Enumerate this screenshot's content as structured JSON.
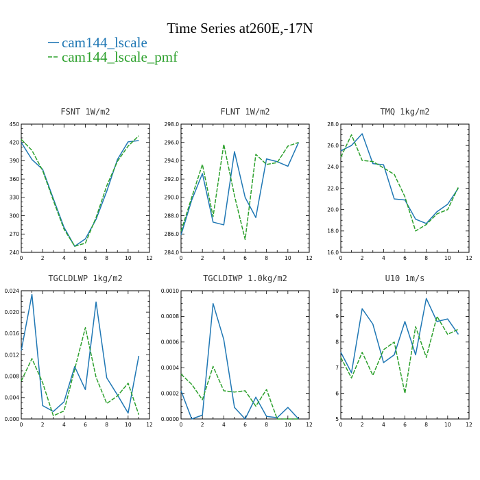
{
  "figure_title": "Time Series at260E,-17N",
  "legend": [
    {
      "label": "cam144_lscale",
      "color": "#1f77b4",
      "dash": "solid"
    },
    {
      "label": "cam144_lscale_pmf",
      "color": "#2ca02c",
      "dash": "dashed"
    }
  ],
  "chart_data": [
    {
      "type": "line",
      "title": "FSNT   1W/m2",
      "xlim": [
        0,
        12
      ],
      "xticks": [
        0,
        2,
        4,
        6,
        8,
        10,
        12
      ],
      "xtick_labels": [
        "0",
        "2",
        "4",
        "6",
        "8",
        "10",
        "12"
      ],
      "ylim": [
        240,
        450
      ],
      "yticks": [
        240,
        270,
        300,
        330,
        360,
        390,
        420,
        450
      ],
      "ytick_labels": [
        "240",
        "270",
        "300",
        "330",
        "360",
        "390",
        "420",
        "450"
      ],
      "x": [
        0,
        1,
        2,
        3,
        4,
        5,
        6,
        7,
        8,
        9,
        10,
        11
      ],
      "series": [
        {
          "name": "cam144_lscale",
          "values": [
            420,
            392,
            376,
            328,
            281,
            250,
            262,
            294,
            340,
            392,
            421,
            423
          ]
        },
        {
          "name": "cam144_lscale_pmf",
          "values": [
            425,
            407,
            374,
            325,
            278,
            250,
            255,
            297,
            349,
            389,
            414,
            431
          ]
        }
      ]
    },
    {
      "type": "line",
      "title": "FLNT   1W/m2",
      "xlim": [
        0,
        12
      ],
      "xticks": [
        0,
        2,
        4,
        6,
        8,
        10,
        12
      ],
      "xtick_labels": [
        "0",
        "2",
        "4",
        "6",
        "8",
        "10",
        "12"
      ],
      "ylim": [
        284,
        298
      ],
      "yticks": [
        284,
        286,
        288,
        290,
        292,
        294,
        296,
        298
      ],
      "ytick_labels": [
        "284.0",
        "286.0",
        "288.0",
        "290.0",
        "292.0",
        "294.0",
        "296.0",
        "298.0"
      ],
      "x": [
        0,
        1,
        2,
        3,
        4,
        5,
        6,
        7,
        8,
        9,
        10,
        11
      ],
      "series": [
        {
          "name": "cam144_lscale",
          "values": [
            285.9,
            289.7,
            292.6,
            287.3,
            287.0,
            295.0,
            290.0,
            287.8,
            294.2,
            293.9,
            293.4,
            296.0
          ]
        },
        {
          "name": "cam144_lscale_pmf",
          "values": [
            286.3,
            290.0,
            293.6,
            287.9,
            295.8,
            290.2,
            285.4,
            294.7,
            293.6,
            293.8,
            295.6,
            296.0
          ]
        }
      ]
    },
    {
      "type": "line",
      "title": "TMQ   1kg/m2",
      "xlim": [
        0,
        12
      ],
      "xticks": [
        0,
        2,
        4,
        6,
        8,
        10,
        12
      ],
      "xtick_labels": [
        "0",
        "2",
        "4",
        "6",
        "8",
        "10",
        "12"
      ],
      "ylim": [
        16,
        28
      ],
      "yticks": [
        16,
        18,
        20,
        22,
        24,
        26,
        28
      ],
      "ytick_labels": [
        "16.0",
        "18.0",
        "20.0",
        "22.0",
        "24.0",
        "26.0",
        "28.0"
      ],
      "x": [
        0,
        1,
        2,
        3,
        4,
        5,
        6,
        7,
        8,
        9,
        10,
        11
      ],
      "series": [
        {
          "name": "cam144_lscale",
          "values": [
            25.5,
            26.0,
            27.1,
            24.3,
            24.2,
            21.0,
            20.9,
            19.1,
            18.7,
            19.8,
            20.5,
            22.0
          ]
        },
        {
          "name": "cam144_lscale_pmf",
          "values": [
            24.9,
            27.0,
            24.6,
            24.5,
            23.9,
            23.3,
            21.2,
            18.0,
            18.6,
            19.6,
            20.0,
            22.1
          ]
        }
      ]
    },
    {
      "type": "line",
      "title": "TGCLDLWP   1kg/m2",
      "xlim": [
        0,
        12
      ],
      "xticks": [
        0,
        2,
        4,
        6,
        8,
        10,
        12
      ],
      "xtick_labels": [
        "0",
        "2",
        "4",
        "6",
        "8",
        "10",
        "12"
      ],
      "ylim": [
        0,
        0.024
      ],
      "yticks": [
        0,
        0.004,
        0.008,
        0.012,
        0.016,
        0.02,
        0.024
      ],
      "ytick_labels": [
        "0.000",
        "0.004",
        "0.008",
        "0.012",
        "0.016",
        "0.020",
        "0.024"
      ],
      "x": [
        0,
        1,
        2,
        3,
        4,
        5,
        6,
        7,
        8,
        9,
        10,
        11
      ],
      "series": [
        {
          "name": "cam144_lscale",
          "values": [
            0.0128,
            0.0233,
            0.0025,
            0.0014,
            0.0032,
            0.0098,
            0.0055,
            0.0219,
            0.0077,
            0.0045,
            0.0011,
            0.0118
          ]
        },
        {
          "name": "cam144_lscale_pmf",
          "values": [
            0.0071,
            0.0113,
            0.0068,
            0.0006,
            0.0015,
            0.0093,
            0.0171,
            0.0078,
            0.0029,
            0.0043,
            0.0067,
            0.0008
          ]
        }
      ]
    },
    {
      "type": "line",
      "title": "TGCLDIWP   1.0kg/m2",
      "xlim": [
        0,
        12
      ],
      "xticks": [
        0,
        2,
        4,
        6,
        8,
        10,
        12
      ],
      "xtick_labels": [
        "0",
        "2",
        "4",
        "6",
        "8",
        "10",
        "12"
      ],
      "ylim": [
        0,
        0.001
      ],
      "yticks": [
        0,
        0.0002,
        0.0004,
        0.0006,
        0.0008,
        0.001
      ],
      "ytick_labels": [
        "0.0000",
        "0.0002",
        "0.0004",
        "0.0006",
        "0.0008",
        "0.0010"
      ],
      "x": [
        0,
        1,
        2,
        3,
        4,
        5,
        6,
        7,
        8,
        9,
        10,
        11
      ],
      "series": [
        {
          "name": "cam144_lscale",
          "values": [
            0.00022,
            0.0,
            3e-05,
            0.0009,
            0.00062,
            9e-05,
            0.0,
            0.00017,
            2e-05,
            1e-05,
            9e-05,
            0.0
          ]
        },
        {
          "name": "cam144_lscale_pmf",
          "values": [
            0.00035,
            0.00027,
            0.00015,
            0.00041,
            0.00022,
            0.00021,
            0.00022,
            0.0001,
            0.00023,
            0.0,
            0.0,
            0.0
          ]
        }
      ]
    },
    {
      "type": "line",
      "title": "U10   1m/s",
      "xlim": [
        0,
        12
      ],
      "xticks": [
        0,
        2,
        4,
        6,
        8,
        10,
        12
      ],
      "xtick_labels": [
        "0",
        "2",
        "4",
        "6",
        "8",
        "10",
        "12"
      ],
      "ylim": [
        5,
        10
      ],
      "yticks": [
        5,
        6,
        7,
        8,
        9,
        10
      ],
      "ytick_labels": [
        "5",
        "6",
        "7",
        "8",
        "9",
        "10"
      ],
      "x": [
        0,
        1,
        2,
        3,
        4,
        5,
        6,
        7,
        8,
        9,
        10,
        11
      ],
      "series": [
        {
          "name": "cam144_lscale",
          "values": [
            7.6,
            6.8,
            9.3,
            8.7,
            7.2,
            7.5,
            8.8,
            7.5,
            9.7,
            8.8,
            8.9,
            8.3
          ]
        },
        {
          "name": "cam144_lscale_pmf",
          "values": [
            7.4,
            6.6,
            7.6,
            6.7,
            7.7,
            8.0,
            6.0,
            8.6,
            7.4,
            9.0,
            8.3,
            8.5
          ]
        }
      ]
    }
  ]
}
